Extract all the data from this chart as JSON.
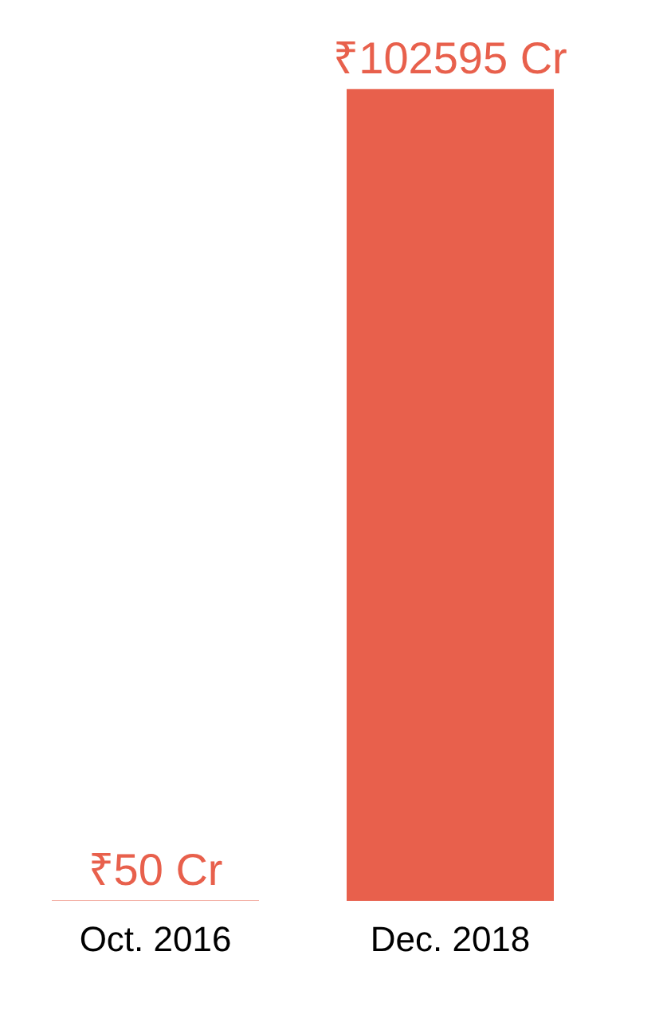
{
  "chart_data": {
    "type": "bar",
    "categories": [
      "Oct. 2016",
      "Dec. 2018"
    ],
    "values": [
      50,
      102595
    ],
    "value_labels": [
      "₹50 Cr",
      "₹102595 Cr"
    ],
    "color": "#e8604c",
    "grid": false
  }
}
